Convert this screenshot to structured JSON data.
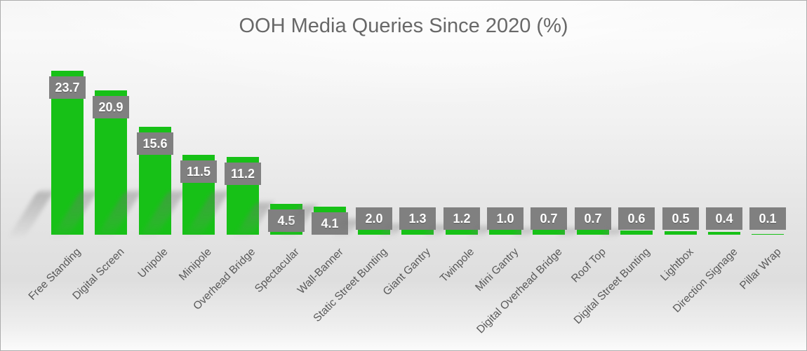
{
  "title": "OOH Media Queries Since 2020 (%)",
  "colors": {
    "bar_fill": "#17c117",
    "data_label_box": "#808080",
    "data_label_text": "#ffffff",
    "title_text": "#686868",
    "category_text": "#595959",
    "background_top": "#fbfbfb",
    "background_bottom": "#dedede"
  },
  "chart_data": {
    "type": "bar",
    "title": "OOH Media Queries Since 2020 (%)",
    "xlabel": "",
    "ylabel": "",
    "ylim": [
      0,
      25
    ],
    "grid": false,
    "legend": "none",
    "axis_lines": "none",
    "data_label_style": "gray box with white bold value, one decimal, at inside-end of each bar",
    "category_label_rotation_deg": -45,
    "categories": [
      "Free Standing",
      "Digital Screen",
      "Unipole",
      "Minipole",
      "Overhead Bridge",
      "Spectacular",
      "Wall-Banner",
      "Static Street Bunting",
      "Giant Gantry",
      "Twinpole",
      "Mini Gantry",
      "Digital Overhead Bridge",
      "Roof Top",
      "Digital Street Bunting",
      "Lightbox",
      "Direction Signage",
      "Pillar Wrap"
    ],
    "values": [
      23.7,
      20.9,
      15.6,
      11.5,
      11.2,
      4.5,
      4.1,
      2.0,
      1.3,
      1.2,
      1.0,
      0.7,
      0.7,
      0.6,
      0.5,
      0.4,
      0.1
    ]
  }
}
